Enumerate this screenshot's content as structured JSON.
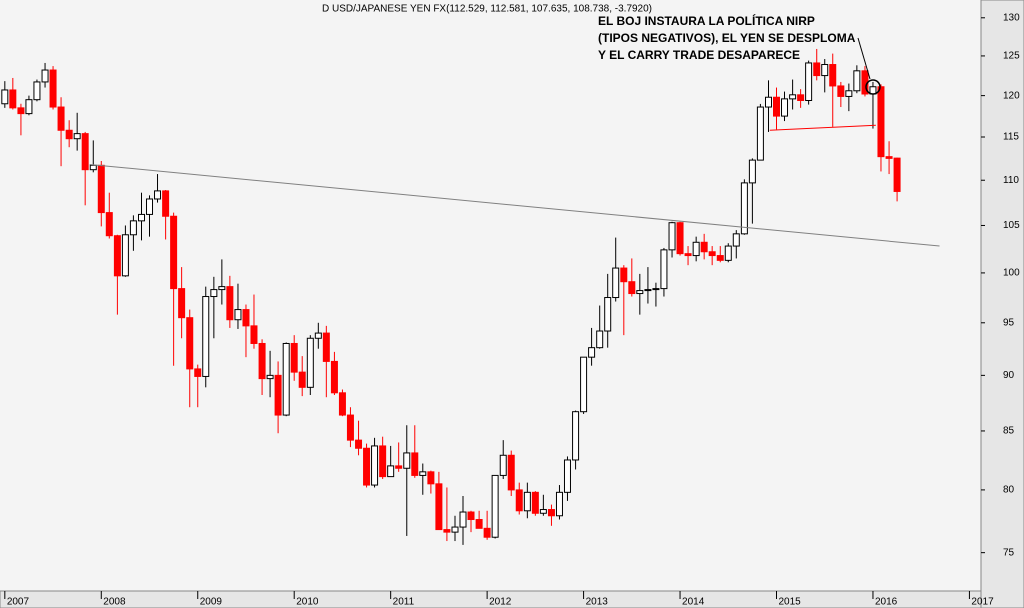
{
  "chart_data": {
    "type": "candlestick",
    "header": "D USD/JAPANESE YEN FX(112.529, 112.581, 107.635, 108.738, -3.7920)",
    "annotation": [
      "EL BOJ INSTAURA LA POLÍTICA NIRP",
      "(TIPOS NEGATIVOS), EL YEN SE DESPLOMA",
      "Y EL CARRY TRADE DESAPARECE"
    ],
    "x": [
      2007,
      2007.083,
      2007.167,
      2007.25,
      2007.333,
      2007.417,
      2007.5,
      2007.583,
      2007.667,
      2007.75,
      2007.833,
      2007.917,
      2008,
      2008.083,
      2008.167,
      2008.25,
      2008.333,
      2008.417,
      2008.5,
      2008.583,
      2008.667,
      2008.75,
      2008.833,
      2008.917,
      2009,
      2009.083,
      2009.167,
      2009.25,
      2009.333,
      2009.417,
      2009.5,
      2009.583,
      2009.667,
      2009.75,
      2009.833,
      2009.917,
      2010,
      2010.083,
      2010.167,
      2010.25,
      2010.333,
      2010.417,
      2010.5,
      2010.583,
      2010.667,
      2010.75,
      2010.833,
      2010.917,
      2011,
      2011.083,
      2011.167,
      2011.25,
      2011.333,
      2011.417,
      2011.5,
      2011.583,
      2011.667,
      2011.75,
      2011.833,
      2011.917,
      2012,
      2012.083,
      2012.167,
      2012.25,
      2012.333,
      2012.417,
      2012.5,
      2012.583,
      2012.667,
      2012.75,
      2012.833,
      2012.917,
      2013,
      2013.083,
      2013.167,
      2013.25,
      2013.333,
      2013.417,
      2013.5,
      2013.583,
      2013.667,
      2013.75,
      2013.833,
      2013.917,
      2014,
      2014.083,
      2014.167,
      2014.25,
      2014.333,
      2014.417,
      2014.5,
      2014.583,
      2014.667,
      2014.75,
      2014.833,
      2014.917,
      2015,
      2015.083,
      2015.167,
      2015.25,
      2015.333,
      2015.417,
      2015.5,
      2015.583,
      2015.667,
      2015.75,
      2015.833,
      2015.917,
      2016,
      2016.083,
      2016.167,
      2016.25
    ],
    "open": [
      119.0,
      120.7,
      118.5,
      117.8,
      119.5,
      121.7,
      123.2,
      118.6,
      115.8,
      114.8,
      115.4,
      111.2,
      111.7,
      106.4,
      103.9,
      99.7,
      104.0,
      105.5,
      106.2,
      107.9,
      108.8,
      106.0,
      98.4,
      95.5,
      90.6,
      89.9,
      97.6,
      98.3,
      98.6,
      95.3,
      96.3,
      94.7,
      93.0,
      89.7,
      90.0,
      86.4,
      93.0,
      90.3,
      88.9,
      93.5,
      94.0,
      91.3,
      88.4,
      86.4,
      84.2,
      83.5,
      80.4,
      83.7,
      81.1,
      82.0,
      81.8,
      83.1,
      81.2,
      81.5,
      80.5,
      76.8,
      76.6,
      77.0,
      78.2,
      77.6,
      76.9,
      76.2,
      81.2,
      82.9,
      80.0,
      78.3,
      79.8,
      78.1,
      78.4,
      77.9,
      79.8,
      82.5,
      86.7,
      91.7,
      92.6,
      94.2,
      97.5,
      100.5,
      99.1,
      97.9,
      98.2,
      98.3,
      98.4,
      102.4,
      105.3,
      102.0,
      101.8,
      103.2,
      102.2,
      101.8,
      101.3,
      102.8,
      104.1,
      109.7,
      112.3,
      118.6,
      119.8,
      117.5,
      119.6,
      120.1,
      119.4,
      124.1,
      122.5,
      123.9,
      121.2,
      119.9,
      120.6,
      123.1,
      120.2,
      121.1,
      112.7,
      112.529
    ],
    "high": [
      121.8,
      122.2,
      119.0,
      120.0,
      122.0,
      124.1,
      123.7,
      119.8,
      117.0,
      117.9,
      115.6,
      114.6,
      112.2,
      108.6,
      104.0,
      105.0,
      106.1,
      108.6,
      108.3,
      110.7,
      108.9,
      106.4,
      100.6,
      96.3,
      91.0,
      98.6,
      99.6,
      101.4,
      99.7,
      98.9,
      96.8,
      97.8,
      93.4,
      92.3,
      91.3,
      93.1,
      93.8,
      91.8,
      93.8,
      95.0,
      94.7,
      92.2,
      88.7,
      87.1,
      85.9,
      83.9,
      84.4,
      84.5,
      83.7,
      84.0,
      85.5,
      85.5,
      82.2,
      81.6,
      81.5,
      80.2,
      77.9,
      79.5,
      78.3,
      78.3,
      78.3,
      81.2,
      84.2,
      83.3,
      80.6,
      80.6,
      79.9,
      79.6,
      78.8,
      80.4,
      82.8,
      86.8,
      91.7,
      94.5,
      96.7,
      99.9,
      103.7,
      100.8,
      101.5,
      99.9,
      100.6,
      99.0,
      102.6,
      105.4,
      105.4,
      102.8,
      103.8,
      104.1,
      102.8,
      102.8,
      103.1,
      104.5,
      110.1,
      112.5,
      118.98,
      121.9,
      121.0,
      120.5,
      122.0,
      120.8,
      124.4,
      125.9,
      124.6,
      125.3,
      121.7,
      121.5,
      123.8,
      123.7,
      121.7,
      121.4,
      114.5,
      112.581
    ],
    "low": [
      118.5,
      118.3,
      115.2,
      117.6,
      119.3,
      121.0,
      118.3,
      111.6,
      113.8,
      113.4,
      107.2,
      110.9,
      104.9,
      103.6,
      95.8,
      99.6,
      102.3,
      103.4,
      103.8,
      107.5,
      103.5,
      90.9,
      93.5,
      87.1,
      87.1,
      88.9,
      93.5,
      96.8,
      94.5,
      94.4,
      91.7,
      92.5,
      88.2,
      88.0,
      84.8,
      86.3,
      89.5,
      88.1,
      88.2,
      92.5,
      88.0,
      88.2,
      86.3,
      83.6,
      82.9,
      80.2,
      80.2,
      80.9,
      81.1,
      81.5,
      76.3,
      81.0,
      79.6,
      79.7,
      76.8,
      75.9,
      75.9,
      75.6,
      76.6,
      76.9,
      76.0,
      76.1,
      80.9,
      79.5,
      78.0,
      77.7,
      77.9,
      77.9,
      77.1,
      77.6,
      79.1,
      81.7,
      86.5,
      90.9,
      92.5,
      92.6,
      97.1,
      93.8,
      97.6,
      95.8,
      96.9,
      96.6,
      97.6,
      101.6,
      101.8,
      100.8,
      101.2,
      101.4,
      100.8,
      101.1,
      101.1,
      101.5,
      104.0,
      105.2,
      112.3,
      115.6,
      115.9,
      116.9,
      118.3,
      118.5,
      118.9,
      121.9,
      120.4,
      116.2,
      118.6,
      118.1,
      120.3,
      119.9,
      116.0,
      111.0,
      110.7,
      107.635
    ],
    "close": [
      120.7,
      118.5,
      117.8,
      119.5,
      121.7,
      123.2,
      118.6,
      115.8,
      114.8,
      115.4,
      111.2,
      111.7,
      106.4,
      103.9,
      99.7,
      104.0,
      105.5,
      106.2,
      107.9,
      108.8,
      106.0,
      98.4,
      95.5,
      90.6,
      89.9,
      97.6,
      98.3,
      98.6,
      95.3,
      96.3,
      94.7,
      93.0,
      89.7,
      90.0,
      86.4,
      93.0,
      90.3,
      88.9,
      93.5,
      94.0,
      91.3,
      88.4,
      86.4,
      84.2,
      83.5,
      80.4,
      83.7,
      81.1,
      82.0,
      81.8,
      83.1,
      81.2,
      81.5,
      80.5,
      76.8,
      76.6,
      77.0,
      78.2,
      77.6,
      76.9,
      76.2,
      81.2,
      82.9,
      80.0,
      78.3,
      79.8,
      78.1,
      78.4,
      77.9,
      79.8,
      82.5,
      86.7,
      91.7,
      92.6,
      94.2,
      97.5,
      100.5,
      99.1,
      97.9,
      98.2,
      98.3,
      98.4,
      102.4,
      105.3,
      102.0,
      101.8,
      103.2,
      102.2,
      101.8,
      101.3,
      102.8,
      104.1,
      109.7,
      112.3,
      118.6,
      119.8,
      117.5,
      119.6,
      120.1,
      119.4,
      124.1,
      122.5,
      123.9,
      121.2,
      119.9,
      120.6,
      123.1,
      120.2,
      121.1,
      112.7,
      112.5,
      108.738
    ],
    "up_color": "#ffffff",
    "down_color": "#ff0000",
    "xlim": [
      2006.95,
      2017.12
    ],
    "ylim": [
      72.1,
      132.4
    ],
    "log_scale": true,
    "xticks": [
      2007,
      2008,
      2009,
      2010,
      2011,
      2012,
      2013,
      2014,
      2015,
      2016,
      2017
    ],
    "yticks": [
      75,
      80,
      85,
      90,
      95,
      100,
      105,
      110,
      115,
      120,
      125,
      130
    ],
    "trendlines": [
      {
        "x": [
          2007.88,
          2016.69
        ],
        "y": [
          111.8,
          102.8
        ],
        "color": "#808080"
      },
      {
        "x": [
          2014.93,
          2016.03
        ],
        "y": [
          115.8,
          116.4
        ],
        "color": "#ff0000"
      }
    ]
  }
}
